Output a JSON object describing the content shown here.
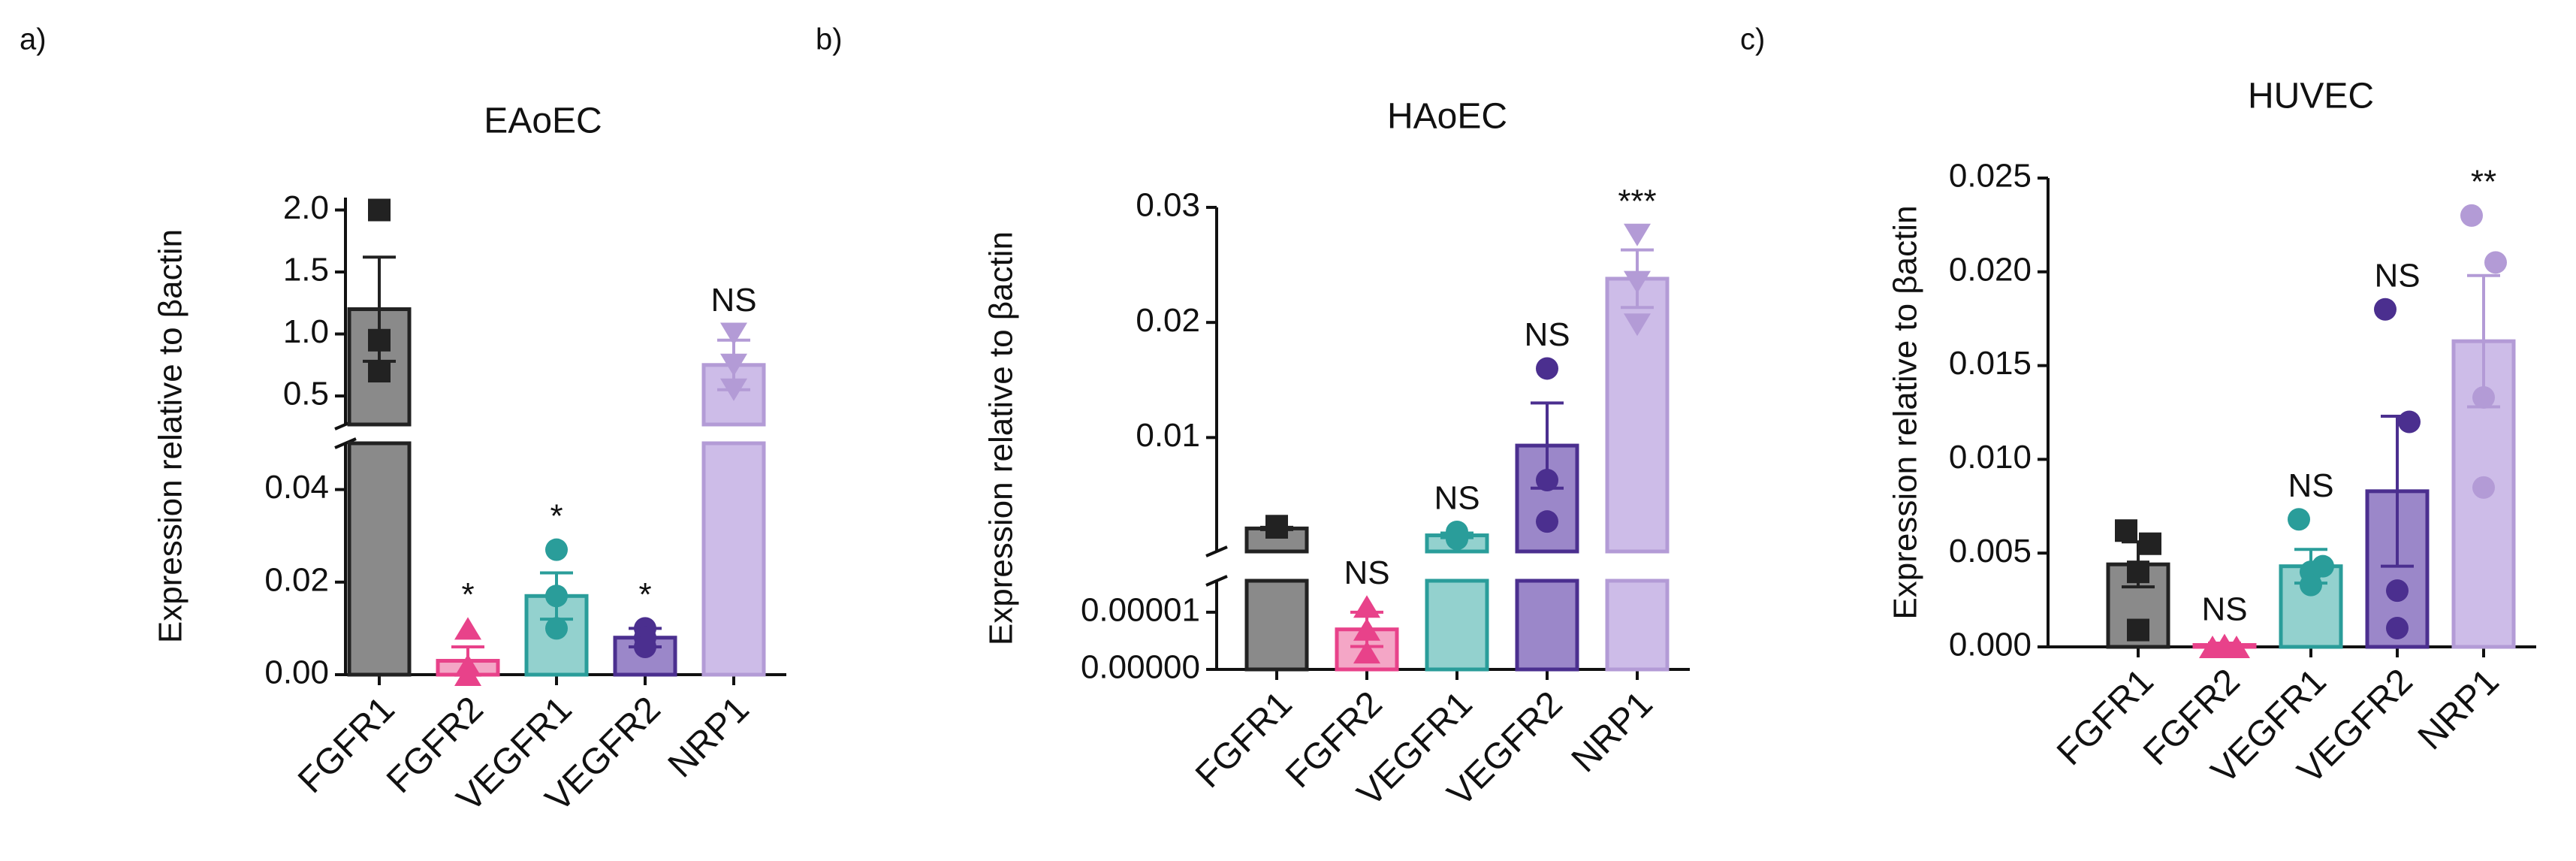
{
  "chart_data": [
    {
      "type": "bar",
      "panel_label": "a)",
      "title": "EAoEC",
      "ylabel": "Expression relative to βactin",
      "categories": [
        "FGFR1",
        "FGFR2",
        "VEGFR1",
        "VEGFR2",
        "NRP1"
      ],
      "colors": [
        "#222222",
        "#e8428a",
        "#2a9d9a",
        "#4b2f8f",
        "#b39bd6"
      ],
      "fill_colors": [
        "#8a8a8a",
        "#f4a6c6",
        "#93d1ce",
        "#9b87c9",
        "#cdbce8"
      ],
      "markers": [
        "square",
        "triangle",
        "circle",
        "circle",
        "triangle-down"
      ],
      "values": [
        1.2,
        0.003,
        0.017,
        0.008,
        0.75
      ],
      "errors": [
        0.42,
        0.003,
        0.005,
        0.002,
        0.2
      ],
      "points": [
        [
          2.0,
          0.95,
          0.7
        ],
        [
          0.01,
          0.002,
          0.0
        ],
        [
          0.027,
          0.017,
          0.01
        ],
        [
          0.01,
          0.008,
          0.006
        ],
        [
          1.0,
          0.75,
          0.55
        ]
      ],
      "annotations": [
        null,
        "*",
        "*",
        "*",
        "NS"
      ],
      "segments": [
        {
          "ylim": [
            0,
            0.05
          ],
          "yticks": [
            {
              "value": 0,
              "label": "0.00"
            },
            0.02,
            0.04
          ]
        },
        {
          "ylim": [
            0.27,
            2.1
          ],
          "yticks": [
            0.5,
            {
              "value": 1,
              "label": "1.0"
            },
            1.5,
            {
              "value": 2,
              "label": "2.0"
            }
          ]
        }
      ]
    },
    {
      "type": "bar",
      "panel_label": "b)",
      "title": "HAoEC",
      "ylabel": "Expression relative to βactin",
      "categories": [
        "FGFR1",
        "FGFR2",
        "VEGFR1",
        "VEGFR2",
        "NRP1"
      ],
      "colors": [
        "#222222",
        "#e8428a",
        "#2a9d9a",
        "#4b2f8f",
        "#b39bd6"
      ],
      "fill_colors": [
        "#8a8a8a",
        "#f4a6c6",
        "#93d1ce",
        "#9b87c9",
        "#cdbce8"
      ],
      "markers": [
        "square",
        "triangle",
        "circle",
        "circle",
        "triangle-down"
      ],
      "values": [
        0.0021,
        7e-06,
        0.0015,
        0.0093,
        0.0238
      ],
      "errors": [
        0.0001,
        3e-06,
        0.0002,
        0.0037,
        0.0025
      ],
      "points": [
        [
          0.0022,
          0.0022,
          0.0023
        ],
        [
          1.1e-05,
          7e-06,
          3e-06
        ],
        [
          0.0018,
          0.0012,
          0.0012
        ],
        [
          0.016,
          0.0063,
          0.0027
        ],
        [
          0.0276,
          0.0235,
          0.0198
        ]
      ],
      "annotations": [
        null,
        "NS",
        "NS",
        "NS",
        "***"
      ],
      "segments": [
        {
          "ylim": [
            0,
            1.55e-05
          ],
          "yticks": [
            {
              "value": 0,
              "label": "0.00000"
            },
            {
              "value": 1e-05,
              "label": "0.00001"
            }
          ]
        },
        {
          "ylim": [
            0.0001,
            0.03
          ],
          "yticks": [
            0.01,
            0.02,
            0.03
          ]
        }
      ]
    },
    {
      "type": "bar",
      "panel_label": "c)",
      "title": "HUVEC",
      "ylabel": "Expression relative to βactin",
      "categories": [
        "FGFR1",
        "FGFR2",
        "VEGFR1",
        "VEGFR2",
        "NRP1"
      ],
      "colors": [
        "#222222",
        "#e8428a",
        "#2a9d9a",
        "#4b2f8f",
        "#b39bd6"
      ],
      "fill_colors": [
        "#8a8a8a",
        "#f4a6c6",
        "#93d1ce",
        "#9b87c9",
        "#cdbce8"
      ],
      "markers": [
        "square",
        "triangle",
        "circle",
        "circle",
        "circle"
      ],
      "values": [
        0.0044,
        0.0001,
        0.0043,
        0.0083,
        0.0163
      ],
      "errors": [
        0.0012,
        0.0001,
        0.0009,
        0.004,
        0.0035
      ],
      "points": [
        [
          0.0062,
          0.0055,
          0.004,
          0.0009
        ],
        [
          0,
          0,
          0.0001,
          0
        ],
        [
          0.0068,
          0.0043,
          0.004,
          0.0033
        ],
        [
          0.018,
          0.012,
          0.003,
          0.001
        ],
        [
          0.023,
          0.0205,
          0.0133,
          0.0085
        ]
      ],
      "annotations": [
        null,
        "NS",
        "NS",
        "NS",
        "**"
      ],
      "segments": [
        {
          "ylim": [
            0,
            0.025
          ],
          "yticks": [
            {
              "value": 0,
              "label": "0.000"
            },
            {
              "value": 0.005,
              "label": "0.005"
            },
            {
              "value": 0.01,
              "label": "0.010"
            },
            {
              "value": 0.015,
              "label": "0.015"
            },
            {
              "value": 0.02,
              "label": "0.020"
            },
            {
              "value": 0.025,
              "label": "0.025"
            }
          ]
        }
      ]
    }
  ]
}
